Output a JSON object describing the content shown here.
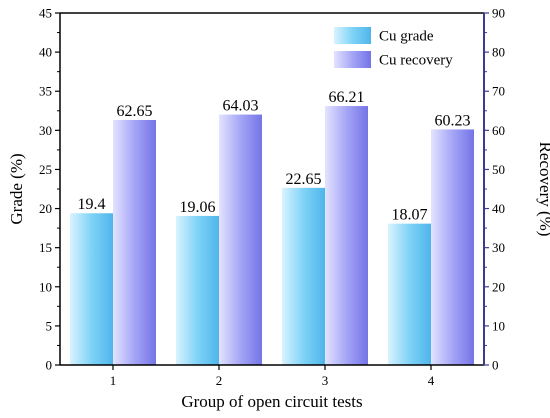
{
  "chart_data": {
    "type": "bar",
    "xlabel": "Group of open circuit tests",
    "ylabel_left": "Grade (%)",
    "ylabel_right": "Recovery (%)",
    "categories": [
      "1",
      "2",
      "3",
      "4"
    ],
    "ylim_left": [
      0,
      45
    ],
    "yticks_left": [
      0,
      5,
      10,
      15,
      20,
      25,
      30,
      35,
      40,
      45
    ],
    "ylim_right": [
      0,
      90
    ],
    "yticks_right": [
      0,
      10,
      20,
      30,
      40,
      50,
      60,
      70,
      80,
      90
    ],
    "series": [
      {
        "name": "Cu grade",
        "axis": "left",
        "values": [
          19.4,
          19.06,
          22.65,
          18.07
        ],
        "labels": [
          "19.4",
          "19.06",
          "22.65",
          "18.07"
        ],
        "color": "#7fd3f7"
      },
      {
        "name": "Cu recovery",
        "axis": "right",
        "values": [
          62.65,
          64.03,
          66.21,
          60.23
        ],
        "labels": [
          "62.65",
          "64.03",
          "66.21",
          "60.23"
        ],
        "color": "#9b9bf2"
      }
    ],
    "legend_position": "top-right",
    "axis_colors": {
      "left": "#000000",
      "right": "#3b3b8f"
    },
    "grid": false
  }
}
